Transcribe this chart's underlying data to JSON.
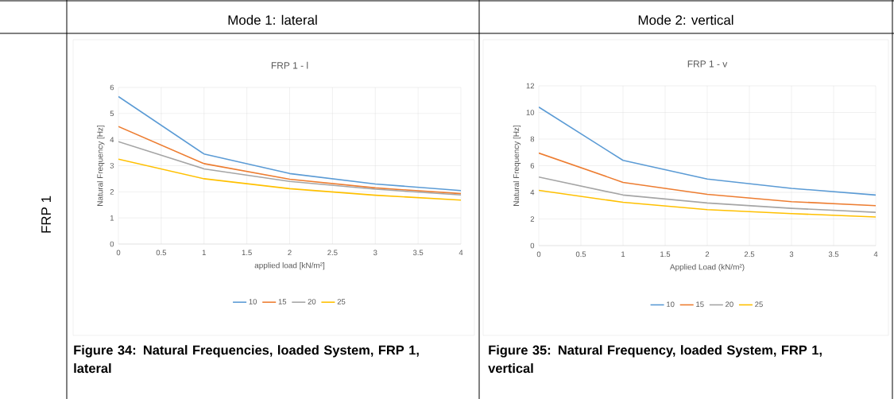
{
  "chart_data": [
    {
      "type": "line",
      "title": "FRP 1 - l",
      "xlabel": "applied load [kN/m²]",
      "ylabel": "Natural Frequency [Hz]",
      "annotations": [
        "Mode 1: lateral",
        "FRP 1",
        "Figure 34: Natural Frequencies, loaded System, FRP 1, lateral"
      ],
      "x": [
        0,
        1,
        2,
        3,
        4
      ],
      "xlim": [
        0,
        4
      ],
      "xticks": [
        0,
        0.5,
        1,
        1.5,
        2,
        2.5,
        3,
        3.5,
        4
      ],
      "ylim": [
        0,
        6
      ],
      "yticks": [
        0,
        1,
        2,
        3,
        4,
        5,
        6
      ],
      "grid": true,
      "legend": "bottom",
      "marker": "none",
      "line_style": "solid",
      "series": [
        {
          "name": "10",
          "color": "#5b9bd5",
          "values": [
            5.65,
            3.45,
            2.7,
            2.3,
            2.05
          ]
        },
        {
          "name": "15",
          "color": "#ed7d31",
          "values": [
            4.5,
            3.08,
            2.48,
            2.15,
            1.93
          ]
        },
        {
          "name": "20",
          "color": "#a5a5a5",
          "values": [
            3.92,
            2.88,
            2.4,
            2.1,
            1.88
          ]
        },
        {
          "name": "25",
          "color": "#ffc000",
          "values": [
            3.25,
            2.5,
            2.12,
            1.87,
            1.68
          ]
        }
      ]
    },
    {
      "type": "line",
      "title": "FRP 1 - v",
      "xlabel": "Applied Load (kN/m²)",
      "ylabel": "Natural Frequency [Hz]",
      "annotations": [
        "Mode 2: vertical",
        "Figure 35: Natural Frequency, loaded System, FRP 1, vertical"
      ],
      "x": [
        0,
        1,
        2,
        3,
        4
      ],
      "xlim": [
        0,
        4
      ],
      "xticks": [
        0,
        0.5,
        1,
        1.5,
        2,
        2.5,
        3,
        3.5,
        4
      ],
      "ylim": [
        0,
        12
      ],
      "yticks": [
        0,
        2,
        4,
        6,
        8,
        10,
        12
      ],
      "grid": true,
      "legend": "bottom",
      "marker": "none",
      "line_style": "solid",
      "series": [
        {
          "name": "10",
          "color": "#5b9bd5",
          "values": [
            10.4,
            6.4,
            5.0,
            4.3,
            3.8
          ]
        },
        {
          "name": "15",
          "color": "#ed7d31",
          "values": [
            6.95,
            4.75,
            3.85,
            3.3,
            3.0
          ]
        },
        {
          "name": "20",
          "color": "#a5a5a5",
          "values": [
            5.15,
            3.8,
            3.2,
            2.8,
            2.5
          ]
        },
        {
          "name": "25",
          "color": "#ffc000",
          "values": [
            4.15,
            3.25,
            2.7,
            2.4,
            2.15
          ]
        }
      ]
    }
  ]
}
